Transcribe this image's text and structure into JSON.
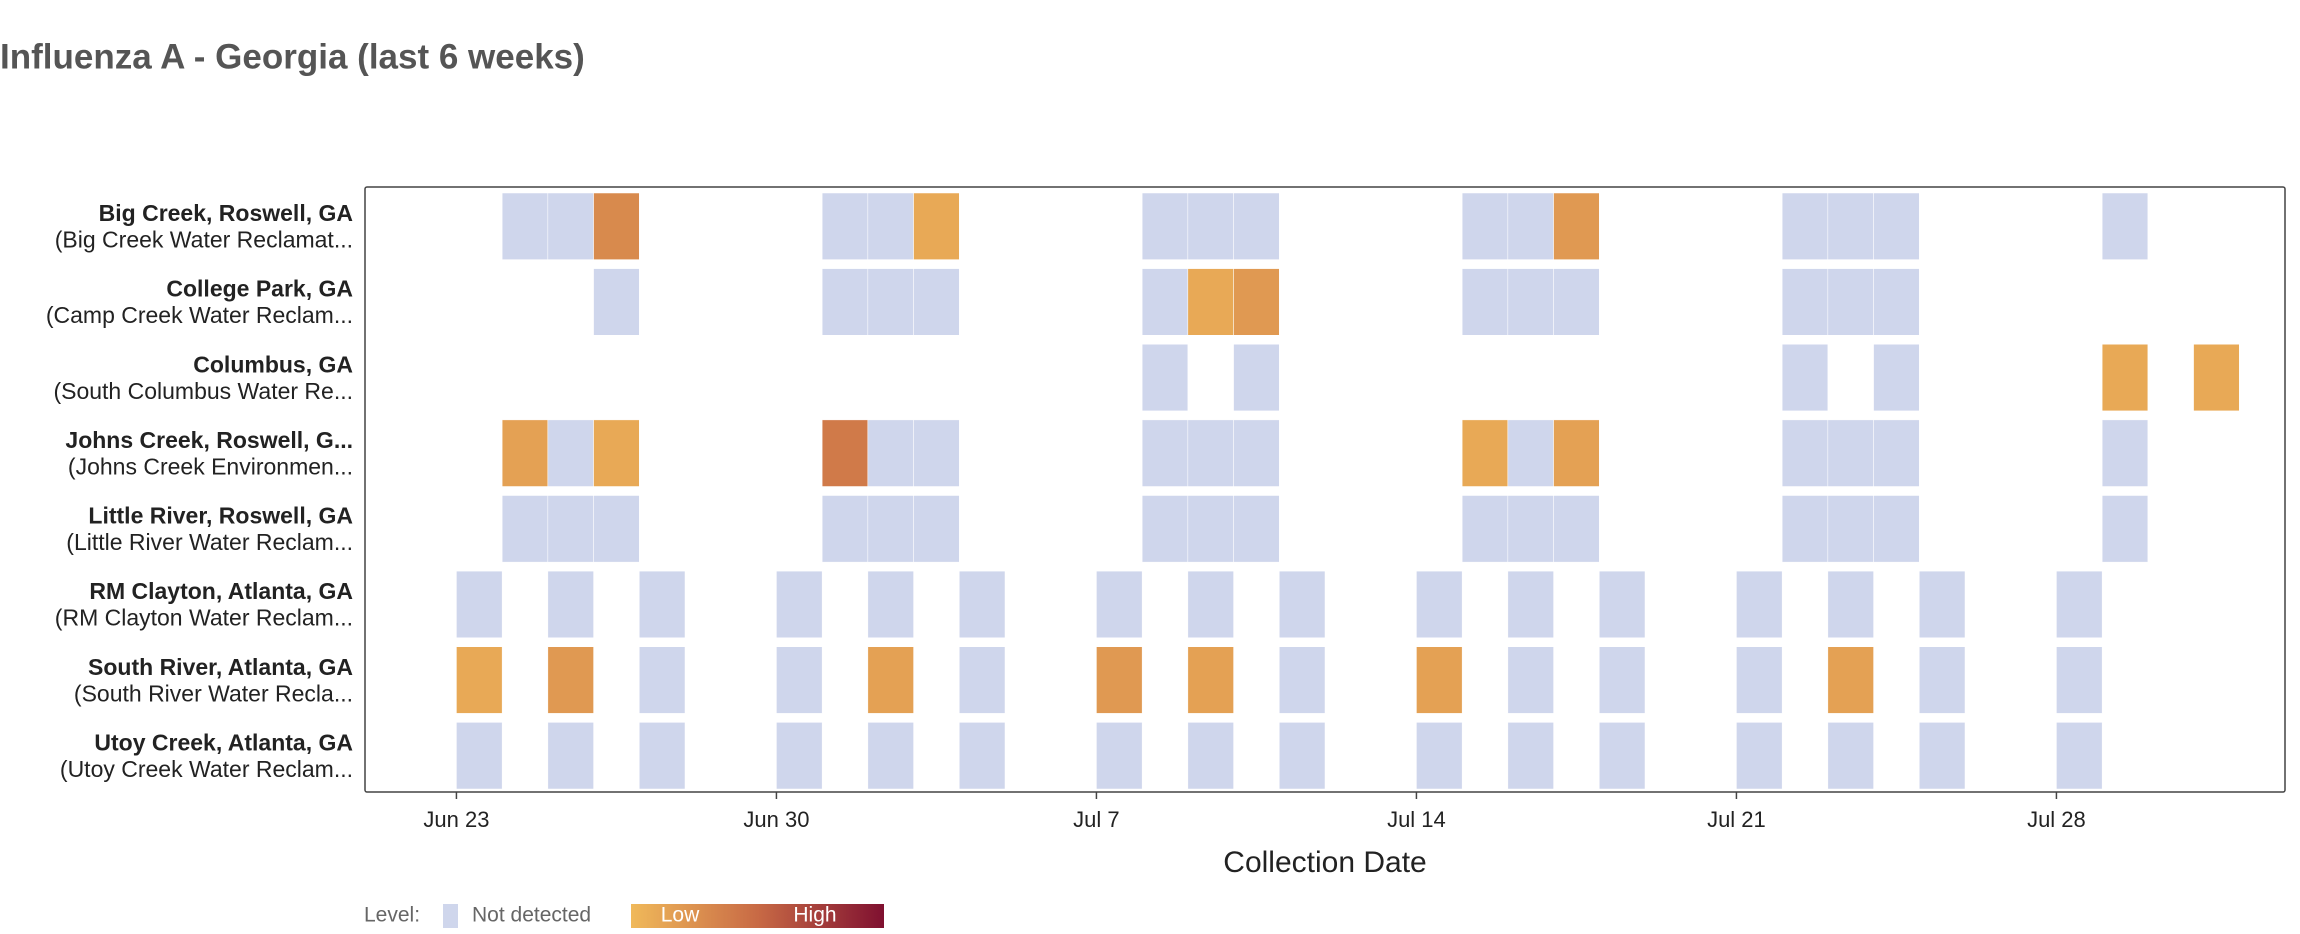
{
  "chart_data": {
    "type": "heatmap",
    "title": "Influenza A - Georgia (last 6 weeks)",
    "x_label": "Collection Date",
    "xlim": [
      -2,
      40
    ],
    "xticks": [
      {
        "value": 0,
        "label": "Jun 23"
      },
      {
        "value": 7,
        "label": "Jun 30"
      },
      {
        "value": 14,
        "label": "Jul 7"
      },
      {
        "value": 21,
        "label": "Jul 14"
      },
      {
        "value": 28,
        "label": "Jul 21"
      },
      {
        "value": 35,
        "label": "Jul 28"
      }
    ],
    "not_detected_color": "#cfd6ec",
    "gradient_colors": [
      "#f0b95a",
      "#c86a45",
      "#7f1030"
    ],
    "legend": {
      "title": "Level:",
      "not_detected": "Not detected",
      "low": "Low",
      "high": "High"
    },
    "rows": [
      {
        "name": "Big Creek, Roswell, GA",
        "subname": "(Big Creek Water Reclamat...",
        "x": [
          1,
          2,
          3,
          8,
          9,
          10,
          15,
          16,
          17,
          22,
          23,
          24,
          29,
          30,
          31,
          36
        ],
        "values": [
          0,
          0,
          0.3,
          0,
          0,
          0.1,
          0,
          0,
          0,
          0,
          0,
          0.2,
          0,
          0,
          0,
          0
        ]
      },
      {
        "name": "College Park, GA",
        "subname": "(Camp Creek Water Reclam...",
        "x": [
          3,
          8,
          9,
          10,
          15,
          16,
          17,
          22,
          23,
          24,
          29,
          30,
          31
        ],
        "values": [
          0,
          0,
          0,
          0,
          0,
          0.1,
          0.2,
          0,
          0,
          0,
          0,
          0,
          0
        ]
      },
      {
        "name": "Columbus, GA",
        "subname": "(South Columbus Water Re...",
        "x": [
          15,
          17,
          29,
          31,
          36,
          38
        ],
        "values": [
          0,
          0,
          0,
          0,
          0.1,
          0.1
        ]
      },
      {
        "name": "Johns Creek, Roswell, G...",
        "subname": "(Johns Creek Environmen...",
        "x": [
          1,
          2,
          3,
          8,
          9,
          10,
          15,
          16,
          17,
          22,
          23,
          24,
          29,
          30,
          31,
          36
        ],
        "values": [
          0.15,
          0,
          0.1,
          0.4,
          0,
          0,
          0,
          0,
          0,
          0.1,
          0,
          0.15,
          0,
          0,
          0,
          0
        ]
      },
      {
        "name": "Little River, Roswell, GA",
        "subname": "(Little River Water Reclam...",
        "x": [
          1,
          2,
          3,
          8,
          9,
          10,
          15,
          16,
          17,
          22,
          23,
          24,
          29,
          30,
          31,
          36
        ],
        "values": [
          0,
          0,
          0,
          0,
          0,
          0,
          0,
          0,
          0,
          0,
          0,
          0,
          0,
          0,
          0,
          0
        ]
      },
      {
        "name": "RM Clayton, Atlanta, GA",
        "subname": "(RM Clayton Water Reclam...",
        "x": [
          0,
          2,
          4,
          7,
          9,
          11,
          14,
          16,
          18,
          21,
          23,
          25,
          28,
          30,
          32,
          35
        ],
        "values": [
          0,
          0,
          0,
          0,
          0,
          0,
          0,
          0,
          0,
          0,
          0,
          0,
          0,
          0,
          0,
          0
        ]
      },
      {
        "name": "South River, Atlanta, GA",
        "subname": "(South River Water Recla...",
        "x": [
          0,
          2,
          4,
          7,
          9,
          11,
          14,
          16,
          18,
          21,
          23,
          25,
          28,
          30,
          32,
          35
        ],
        "values": [
          0.1,
          0.2,
          0,
          0,
          0.15,
          0,
          0.2,
          0.15,
          0,
          0.15,
          0,
          0,
          0,
          0.15,
          0,
          0
        ]
      },
      {
        "name": "Utoy Creek, Atlanta, GA",
        "subname": "(Utoy Creek Water Reclam...",
        "x": [
          0,
          2,
          4,
          7,
          9,
          11,
          14,
          16,
          18,
          21,
          23,
          25,
          28,
          30,
          32,
          35
        ],
        "values": [
          0,
          0,
          0,
          0,
          0,
          0,
          0,
          0,
          0,
          0,
          0,
          0,
          0,
          0,
          0,
          0
        ]
      }
    ]
  }
}
